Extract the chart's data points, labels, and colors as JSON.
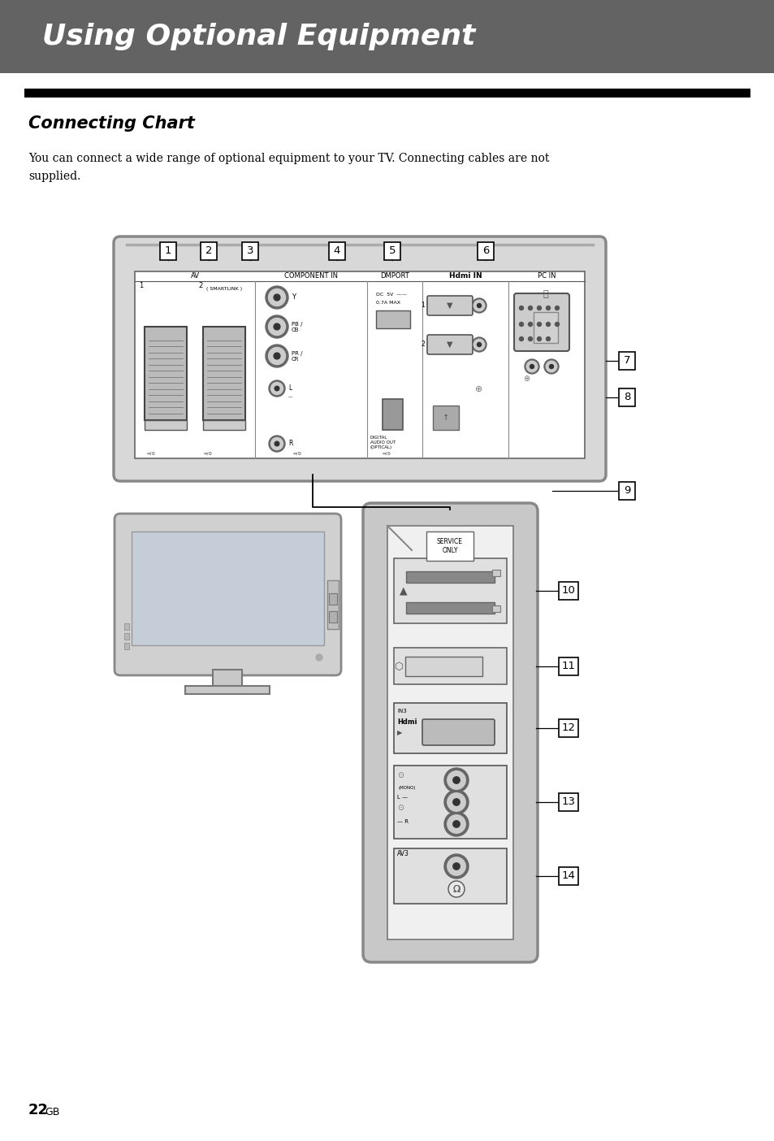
{
  "title_text": "Using Optional Equipment",
  "title_bg_color": "#636363",
  "title_text_color": "#ffffff",
  "section_title": "Connecting Chart",
  "body_text_line1": "You can connect a wide range of optional equipment to your TV. Connecting cables are not",
  "body_text_line2": "supplied.",
  "page_number": "22",
  "page_suffix": "GB",
  "bg_color": "#ffffff",
  "panel_bg": "#e0e0e0",
  "panel_border": "#888888",
  "inner_bg": "#f5f5f5",
  "scart_fill": "#c8c8c8",
  "rca_outer": "#555555",
  "rca_inner": "#cccccc",
  "hdmi_fill": "#bbbbbb",
  "side_bg": "#d8d8d8",
  "num_box_positions_top": [
    [
      207,
      295,
      "1"
    ],
    [
      257,
      295,
      "2"
    ],
    [
      308,
      295,
      "3"
    ],
    [
      415,
      295,
      "4"
    ],
    [
      483,
      295,
      "5"
    ],
    [
      598,
      295,
      "6"
    ]
  ]
}
